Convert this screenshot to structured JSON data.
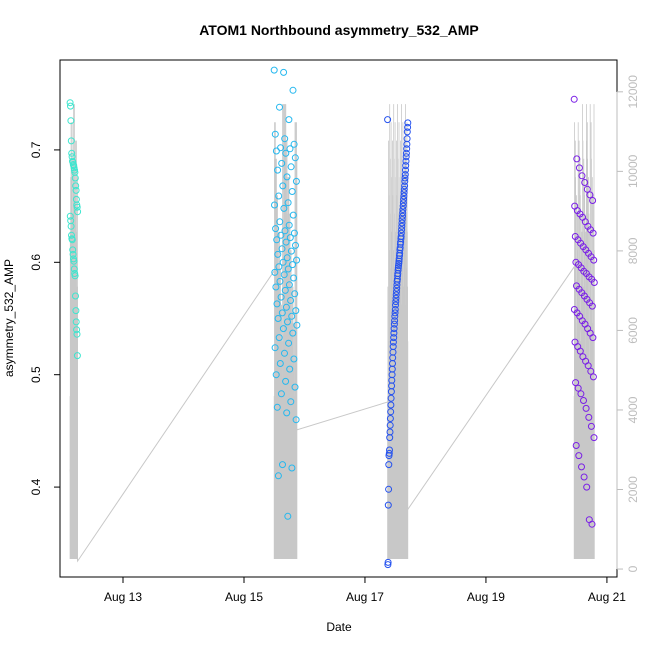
{
  "chart_data": {
    "type": "scatter",
    "title": "ATOM1 Northbound asymmetry_532_AMP",
    "xlabel": "Date",
    "ylabel": "asymmetry_532_AMP",
    "xlim": [
      "2023-08-11T23:00",
      "2023-08-21T04:00"
    ],
    "ylim": [
      0.32,
      0.78
    ],
    "y_ticks": [
      0.4,
      0.5,
      0.6,
      0.7
    ],
    "x_ticks": [
      {
        "date": "2023-08-13T00:00",
        "label": "Aug 13"
      },
      {
        "date": "2023-08-15T00:00",
        "label": "Aug 15"
      },
      {
        "date": "2023-08-17T00:00",
        "label": "Aug 17"
      },
      {
        "date": "2023-08-19T00:00",
        "label": "Aug 19"
      },
      {
        "date": "2023-08-21T00:00",
        "label": "Aug 21"
      }
    ],
    "secondary_axis": {
      "side": "right",
      "ylim": [
        -200,
        12800
      ],
      "ticks": [
        0,
        2000,
        4000,
        6000,
        8000,
        10000,
        12000
      ],
      "color": "#bdbdbd"
    },
    "grid": false,
    "marker": "open-circle",
    "color_gradient": "time (cyan → blue → violet)",
    "sessions": [
      {
        "start": "2023-08-12T03:00",
        "end": "2023-08-12T06:00",
        "color": "#3de6cf",
        "values": [
          0.742,
          0.739,
          0.726,
          0.708,
          0.697,
          0.694,
          0.69,
          0.689,
          0.687,
          0.686,
          0.684,
          0.682,
          0.68,
          0.675,
          0.668,
          0.664,
          0.656,
          0.651,
          0.649,
          0.645,
          0.641,
          0.637,
          0.632,
          0.624,
          0.621,
          0.62,
          0.611,
          0.607,
          0.603,
          0.601,
          0.594,
          0.59,
          0.588,
          0.57,
          0.557,
          0.547,
          0.54,
          0.536,
          0.517
        ]
      },
      {
        "start": "2023-08-15T12:00",
        "end": "2023-08-15T21:00",
        "color": "#25b8ef",
        "values": [
          0.771,
          0.769,
          0.753,
          0.738,
          0.727,
          0.714,
          0.71,
          0.705,
          0.702,
          0.701,
          0.699,
          0.697,
          0.693,
          0.688,
          0.685,
          0.682,
          0.676,
          0.672,
          0.668,
          0.663,
          0.659,
          0.653,
          0.651,
          0.648,
          0.642,
          0.636,
          0.633,
          0.63,
          0.628,
          0.626,
          0.624,
          0.622,
          0.62,
          0.618,
          0.615,
          0.612,
          0.61,
          0.607,
          0.604,
          0.602,
          0.6,
          0.598,
          0.596,
          0.594,
          0.591,
          0.589,
          0.586,
          0.583,
          0.58,
          0.578,
          0.575,
          0.572,
          0.569,
          0.566,
          0.563,
          0.56,
          0.557,
          0.555,
          0.552,
          0.55,
          0.547,
          0.544,
          0.541,
          0.537,
          0.533,
          0.528,
          0.524,
          0.519,
          0.514,
          0.51,
          0.505,
          0.5,
          0.494,
          0.489,
          0.483,
          0.476,
          0.471,
          0.466,
          0.46,
          0.42,
          0.417,
          0.41,
          0.374
        ]
      },
      {
        "start": "2023-08-17T09:00",
        "end": "2023-08-17T17:00",
        "color": "#2552ef",
        "values": [
          0.727,
          0.724,
          0.72,
          0.716,
          0.71,
          0.705,
          0.701,
          0.697,
          0.694,
          0.69,
          0.686,
          0.682,
          0.678,
          0.675,
          0.672,
          0.668,
          0.665,
          0.662,
          0.659,
          0.656,
          0.653,
          0.65,
          0.647,
          0.644,
          0.641,
          0.638,
          0.635,
          0.632,
          0.629,
          0.626,
          0.623,
          0.621,
          0.618,
          0.616,
          0.613,
          0.611,
          0.608,
          0.606,
          0.603,
          0.601,
          0.599,
          0.597,
          0.595,
          0.593,
          0.59,
          0.588,
          0.585,
          0.583,
          0.58,
          0.577,
          0.574,
          0.571,
          0.568,
          0.565,
          0.562,
          0.558,
          0.555,
          0.552,
          0.548,
          0.545,
          0.541,
          0.537,
          0.533,
          0.529,
          0.525,
          0.52,
          0.515,
          0.51,
          0.505,
          0.5,
          0.495,
          0.49,
          0.485,
          0.479,
          0.473,
          0.467,
          0.461,
          0.455,
          0.449,
          0.444,
          0.433,
          0.43,
          0.428,
          0.42,
          0.398,
          0.384,
          0.333,
          0.331
        ]
      },
      {
        "start": "2023-08-20T11:00",
        "end": "2023-08-20T19:00",
        "color": "#7a1fe6",
        "values": [
          0.745,
          0.692,
          0.684,
          0.677,
          0.671,
          0.665,
          0.66,
          0.655,
          0.65,
          0.646,
          0.643,
          0.64,
          0.636,
          0.632,
          0.629,
          0.626,
          0.623,
          0.62,
          0.617,
          0.614,
          0.611,
          0.608,
          0.605,
          0.602,
          0.6,
          0.598,
          0.595,
          0.592,
          0.59,
          0.587,
          0.585,
          0.582,
          0.579,
          0.576,
          0.573,
          0.57,
          0.567,
          0.564,
          0.561,
          0.558,
          0.555,
          0.552,
          0.548,
          0.545,
          0.541,
          0.537,
          0.533,
          0.529,
          0.525,
          0.521,
          0.516,
          0.512,
          0.508,
          0.503,
          0.498,
          0.493,
          0.488,
          0.483,
          0.477,
          0.47,
          0.462,
          0.454,
          0.444,
          0.437,
          0.428,
          0.418,
          0.409,
          0.4,
          0.371,
          0.367
        ]
      }
    ],
    "secondary_series": {
      "color": "#c8c8c8",
      "points": [
        {
          "x": "2023-08-12T03:00",
          "y": 2500
        },
        {
          "x": "2023-08-12T06:00",
          "y": 200
        },
        {
          "x": "2023-08-15T12:00",
          "y": 7500
        },
        {
          "x": "2023-08-15T21:00",
          "y": 3500
        },
        {
          "x": "2023-08-17T09:00",
          "y": 4200
        },
        {
          "x": "2023-08-17T17:00",
          "y": 1500
        },
        {
          "x": "2023-08-20T11:00",
          "y": 7600
        },
        {
          "x": "2023-08-20T19:00",
          "y": 3000
        }
      ]
    }
  }
}
